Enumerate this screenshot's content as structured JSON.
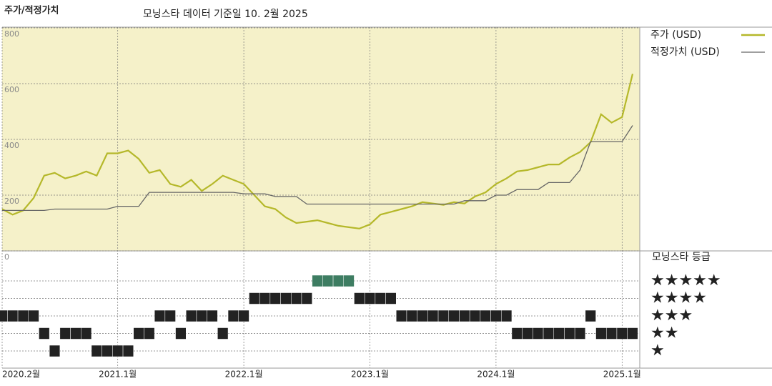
{
  "chart_data": {
    "type": "line",
    "title": "주가/적정가치",
    "subtitle": "모닝스타 데이터 기준일 10. 2월 2025",
    "x": [
      "2020-02",
      "2020-03",
      "2020-04",
      "2020-05",
      "2020-06",
      "2020-07",
      "2020-08",
      "2020-09",
      "2020-10",
      "2020-11",
      "2020-12",
      "2021-01",
      "2021-02",
      "2021-03",
      "2021-04",
      "2021-05",
      "2021-06",
      "2021-07",
      "2021-08",
      "2021-09",
      "2021-10",
      "2021-11",
      "2021-12",
      "2022-01",
      "2022-02",
      "2022-03",
      "2022-04",
      "2022-05",
      "2022-06",
      "2022-07",
      "2022-08",
      "2022-09",
      "2022-10",
      "2022-11",
      "2022-12",
      "2023-01",
      "2023-02",
      "2023-03",
      "2023-04",
      "2023-05",
      "2023-06",
      "2023-07",
      "2023-08",
      "2023-09",
      "2023-10",
      "2023-11",
      "2023-12",
      "2024-01",
      "2024-02",
      "2024-03",
      "2024-04",
      "2024-05",
      "2024-06",
      "2024-07",
      "2024-08",
      "2024-09",
      "2024-10",
      "2024-11",
      "2024-12",
      "2025-01",
      "2025-02"
    ],
    "series": [
      {
        "name": "주가 (USD)",
        "color": "#b5b82a",
        "values": [
          150,
          130,
          145,
          190,
          270,
          280,
          260,
          270,
          285,
          270,
          350,
          350,
          360,
          330,
          280,
          290,
          240,
          230,
          255,
          215,
          240,
          270,
          255,
          240,
          200,
          160,
          150,
          120,
          100,
          105,
          110,
          100,
          90,
          85,
          80,
          95,
          130,
          140,
          150,
          160,
          175,
          170,
          165,
          175,
          170,
          195,
          210,
          240,
          260,
          285,
          290,
          300,
          310,
          310,
          335,
          355,
          390,
          490,
          460,
          480,
          635
        ]
      },
      {
        "name": "적정가치 (USD)",
        "color": "#666666",
        "values": [
          145,
          145,
          145,
          145,
          145,
          150,
          150,
          150,
          150,
          150,
          150,
          160,
          160,
          160,
          210,
          210,
          210,
          210,
          210,
          210,
          210,
          210,
          210,
          205,
          205,
          205,
          195,
          195,
          195,
          168,
          168,
          168,
          168,
          168,
          168,
          168,
          168,
          168,
          168,
          168,
          168,
          168,
          168,
          168,
          180,
          180,
          180,
          200,
          200,
          220,
          220,
          220,
          245,
          245,
          245,
          290,
          392,
          392,
          392,
          392,
          450
        ]
      }
    ],
    "xlim": [
      "2020-02",
      "2025-02"
    ],
    "xticks": [
      {
        "value": "2020-02",
        "label": "2020.2월"
      },
      {
        "value": "2021-01",
        "label": "2021.1월"
      },
      {
        "value": "2022-01",
        "label": "2022.1월"
      },
      {
        "value": "2023-01",
        "label": "2023.1월"
      },
      {
        "value": "2024-01",
        "label": "2024.1월"
      },
      {
        "value": "2025-01",
        "label": "2025.1월"
      }
    ],
    "ylim": [
      0,
      800
    ],
    "yticks": [
      0,
      200,
      400,
      600,
      800
    ],
    "grid": true,
    "ratings": {
      "title": "모닝스타 등급",
      "color_high": "#3e7d62",
      "color": "#222222",
      "levels": [
        {
          "value": 5,
          "label": "★★★★★"
        },
        {
          "value": 4,
          "label": "★★★★"
        },
        {
          "value": 3,
          "label": "★★★"
        },
        {
          "value": 2,
          "label": "★★"
        },
        {
          "value": 1,
          "label": "★"
        }
      ],
      "values": [
        3,
        3,
        3,
        3,
        2,
        1,
        2,
        2,
        2,
        1,
        1,
        1,
        1,
        2,
        2,
        3,
        3,
        2,
        3,
        3,
        3,
        2,
        3,
        3,
        4,
        4,
        4,
        4,
        4,
        4,
        5,
        5,
        5,
        5,
        4,
        4,
        4,
        4,
        3,
        3,
        3,
        3,
        3,
        3,
        3,
        3,
        3,
        3,
        3,
        2,
        2,
        2,
        2,
        2,
        2,
        2,
        3,
        2,
        2,
        2,
        2
      ]
    }
  }
}
